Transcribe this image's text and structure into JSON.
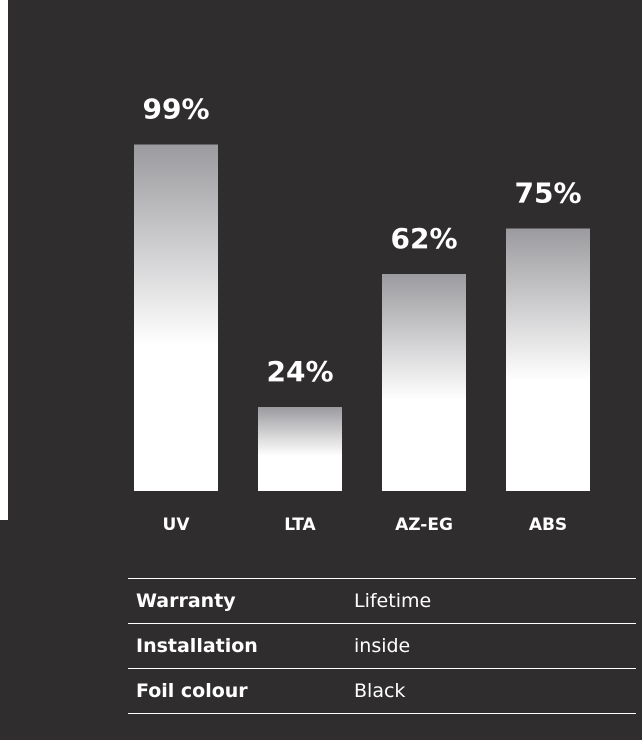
{
  "chart_data": {
    "type": "bar",
    "categories": [
      "UV",
      "LTA",
      "AZ-EG",
      "ABS"
    ],
    "values": [
      99,
      24,
      62,
      75
    ],
    "value_labels": [
      "99%",
      "24%",
      "62%",
      "75%"
    ],
    "ylim": [
      0,
      100
    ],
    "grid": false,
    "colors": {
      "bar_top": "#9b9b9f",
      "bar_bottom": "#ffffff",
      "background": "#2f2d2e"
    }
  },
  "specs": [
    {
      "key": "Warranty",
      "value": "Lifetime"
    },
    {
      "key": "Installation",
      "value": "inside"
    },
    {
      "key": "Foil colour",
      "value": "Black"
    }
  ]
}
